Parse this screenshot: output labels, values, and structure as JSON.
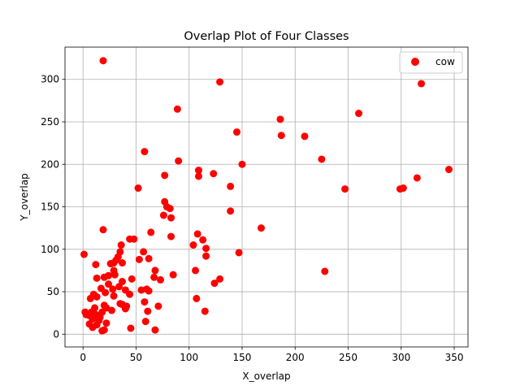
{
  "chart_data": {
    "type": "scatter",
    "title": "Overlap Plot of Four Classes",
    "xlabel": "X_overlap",
    "ylabel": "Y_overlap",
    "xlim": [
      -17,
      363
    ],
    "ylim": [
      -15,
      338
    ],
    "xticks": [
      0,
      50,
      100,
      150,
      200,
      250,
      300,
      350
    ],
    "yticks": [
      0,
      50,
      100,
      150,
      200,
      250,
      300
    ],
    "grid": true,
    "legend_placement": "top-right",
    "series": [
      {
        "name": "cow",
        "color": "#ff0000",
        "points": [
          [
            19,
            322
          ],
          [
            129,
            297
          ],
          [
            319,
            295
          ],
          [
            89,
            265
          ],
          [
            260,
            260
          ],
          [
            186,
            253
          ],
          [
            145,
            238
          ],
          [
            187,
            234
          ],
          [
            209,
            233
          ],
          [
            58,
            215
          ],
          [
            225,
            206
          ],
          [
            90,
            204
          ],
          [
            150,
            200
          ],
          [
            345,
            194
          ],
          [
            109,
            193
          ],
          [
            123,
            189
          ],
          [
            77,
            187
          ],
          [
            109,
            186
          ],
          [
            315,
            184
          ],
          [
            139,
            174
          ],
          [
            52,
            172
          ],
          [
            247,
            171
          ],
          [
            299,
            171
          ],
          [
            302,
            172
          ],
          [
            77,
            156
          ],
          [
            79,
            150
          ],
          [
            82,
            148
          ],
          [
            139,
            145
          ],
          [
            76,
            140
          ],
          [
            83,
            137
          ],
          [
            168,
            125
          ],
          [
            19,
            123
          ],
          [
            64,
            120
          ],
          [
            108,
            118
          ],
          [
            83,
            115
          ],
          [
            44,
            112
          ],
          [
            48,
            112
          ],
          [
            113,
            111
          ],
          [
            36,
            105
          ],
          [
            104,
            105
          ],
          [
            116,
            101
          ],
          [
            35,
            97
          ],
          [
            57,
            97
          ],
          [
            147,
            96
          ],
          [
            1,
            94
          ],
          [
            33,
            91
          ],
          [
            31,
            87
          ],
          [
            116,
            92
          ],
          [
            26,
            83
          ],
          [
            12,
            82
          ],
          [
            53,
            88
          ],
          [
            62,
            89
          ],
          [
            37,
            84
          ],
          [
            29,
            84
          ],
          [
            20,
            67
          ],
          [
            13,
            66
          ],
          [
            24,
            69
          ],
          [
            29,
            75
          ],
          [
            68,
            75
          ],
          [
            228,
            74
          ],
          [
            30,
            70
          ],
          [
            106,
            75
          ],
          [
            85,
            70
          ],
          [
            46,
            65
          ],
          [
            129,
            65
          ],
          [
            67,
            67
          ],
          [
            73,
            64
          ],
          [
            124,
            60
          ],
          [
            37,
            62
          ],
          [
            24,
            59
          ],
          [
            34,
            56
          ],
          [
            17,
            54
          ],
          [
            28,
            53
          ],
          [
            40,
            52
          ],
          [
            55,
            52
          ],
          [
            60,
            53
          ],
          [
            62,
            51
          ],
          [
            21,
            49
          ],
          [
            10,
            47
          ],
          [
            13,
            44
          ],
          [
            44,
            47
          ],
          [
            7,
            42
          ],
          [
            29,
            45
          ],
          [
            107,
            42
          ],
          [
            58,
            38
          ],
          [
            37,
            35
          ],
          [
            35,
            36
          ],
          [
            41,
            33
          ],
          [
            40,
            30
          ],
          [
            71,
            33
          ],
          [
            20,
            34
          ],
          [
            22,
            31
          ],
          [
            18,
            26
          ],
          [
            27,
            28
          ],
          [
            61,
            27
          ],
          [
            115,
            27
          ],
          [
            11,
            31
          ],
          [
            8,
            26
          ],
          [
            2,
            26
          ],
          [
            3,
            23
          ],
          [
            6,
            22
          ],
          [
            12,
            23
          ],
          [
            16,
            20
          ],
          [
            9,
            18
          ],
          [
            15,
            16
          ],
          [
            59,
            15
          ],
          [
            22,
            13
          ],
          [
            6,
            12
          ],
          [
            13,
            11
          ],
          [
            9,
            8
          ],
          [
            45,
            7
          ],
          [
            68,
            5
          ],
          [
            18,
            4
          ],
          [
            20,
            5
          ]
        ]
      }
    ]
  }
}
